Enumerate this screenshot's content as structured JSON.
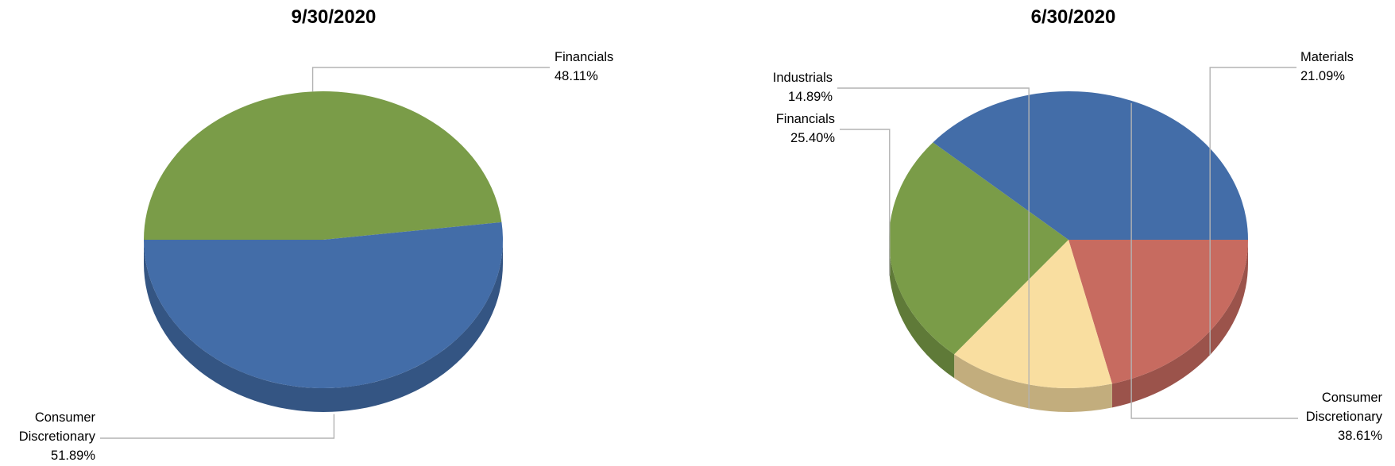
{
  "chart_data": [
    {
      "type": "pie",
      "title": "9/30/2020",
      "style": "3d",
      "slices": [
        {
          "label": "Financials",
          "value": 48.11,
          "value_label": "48.11%",
          "color": "#7A9C48"
        },
        {
          "label": "Consumer Discretionary",
          "value": 51.89,
          "value_label": "51.89%",
          "color": "#436DA8"
        }
      ]
    },
    {
      "type": "pie",
      "title": "6/30/2020",
      "style": "3d",
      "slices": [
        {
          "label": "Materials",
          "value": 21.09,
          "value_label": "21.09%",
          "color": "#C76B60"
        },
        {
          "label": "Industrials",
          "value": 14.89,
          "value_label": "14.89%",
          "color": "#F9DEA0"
        },
        {
          "label": "Financials",
          "value": 25.4,
          "value_label": "25.40%",
          "color": "#7A9C48"
        },
        {
          "label": "Consumer Discretionary",
          "value": 38.61,
          "value_label": "38.61%",
          "color": "#436DA8"
        }
      ]
    }
  ]
}
